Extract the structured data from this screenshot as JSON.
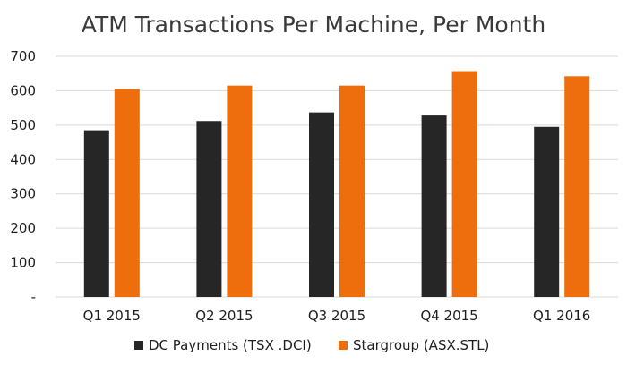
{
  "chart_data": {
    "type": "bar",
    "title": "ATM Transactions Per Machine, Per Month",
    "categories": [
      "Q1 2015",
      "Q2 2015",
      "Q3 2015",
      "Q4 2015",
      "Q1 2016"
    ],
    "series": [
      {
        "name": "DC Payments (TSX .DCI)",
        "values": [
          485,
          512,
          537,
          528,
          495
        ],
        "color": "#262626"
      },
      {
        "name": "Stargroup (ASX.STL)",
        "values": [
          605,
          615,
          615,
          657,
          642
        ],
        "color": "#ee6d0c"
      }
    ],
    "ylim": [
      0,
      700
    ],
    "yticks": [
      {
        "value": 0,
        "label": "-"
      },
      {
        "value": 100,
        "label": "100"
      },
      {
        "value": 200,
        "label": "200"
      },
      {
        "value": 300,
        "label": "300"
      },
      {
        "value": 400,
        "label": "400"
      },
      {
        "value": 500,
        "label": "500"
      },
      {
        "value": 600,
        "label": "600"
      },
      {
        "value": 700,
        "label": "700"
      }
    ],
    "grid": true,
    "legend_position": "bottom"
  }
}
